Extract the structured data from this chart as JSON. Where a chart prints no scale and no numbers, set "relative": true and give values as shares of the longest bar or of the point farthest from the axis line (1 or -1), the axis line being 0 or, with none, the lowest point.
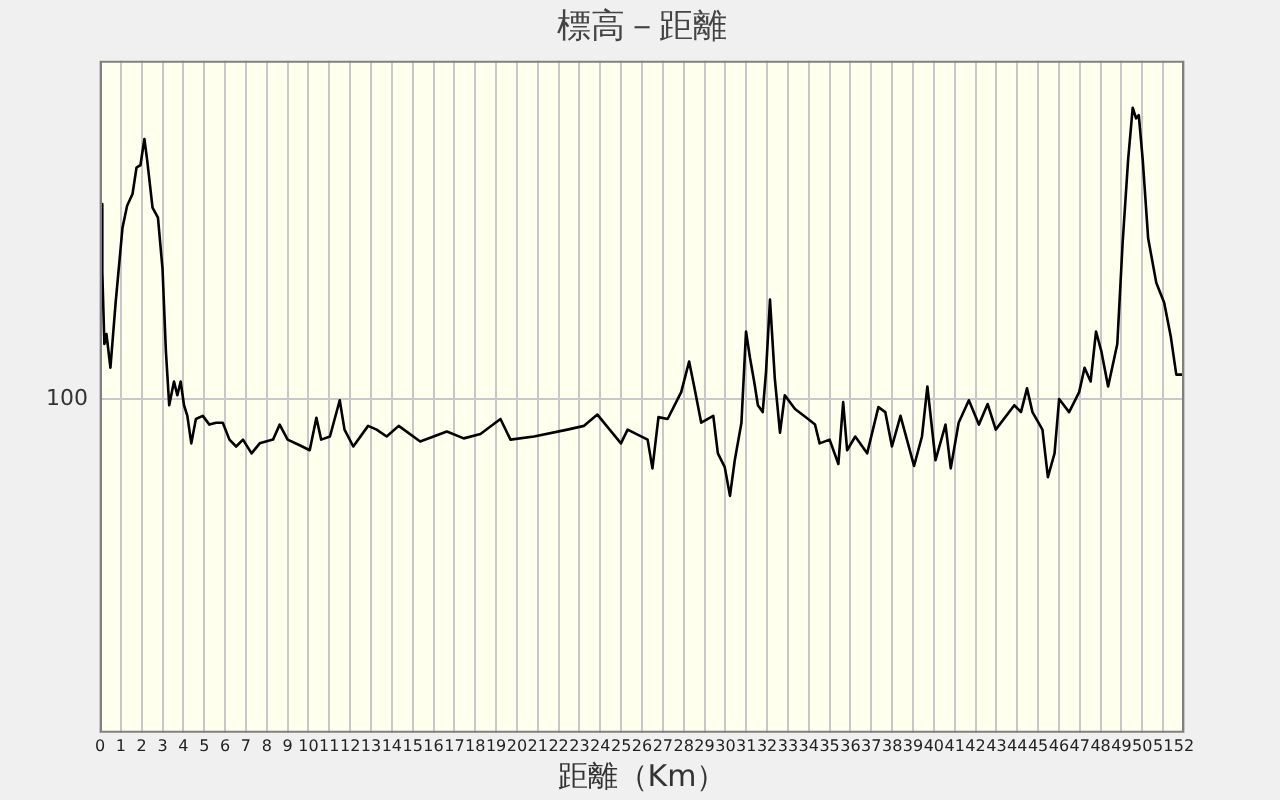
{
  "chart_data": {
    "type": "line",
    "title": "標高－距離",
    "xlabel": "距離（Km）",
    "relative": true,
    "xlim": [
      0,
      52
    ],
    "xticks": [
      0,
      1,
      2,
      3,
      4,
      5,
      6,
      7,
      8,
      9,
      10,
      11,
      12,
      13,
      14,
      15,
      16,
      17,
      18,
      19,
      20,
      21,
      22,
      23,
      24,
      25,
      26,
      27,
      28,
      29,
      30,
      31,
      32,
      33,
      34,
      35,
      36,
      37,
      38,
      39,
      40,
      41,
      42,
      43,
      44,
      45,
      46,
      47,
      48,
      49,
      50,
      51,
      52
    ],
    "grid": "x",
    "legend": false,
    "marker": "none",
    "line_style": "solid",
    "ref_lines": [
      {
        "axis": "y",
        "value": 0.534,
        "color": "#c8c8c8"
      }
    ],
    "annotations": [
      "100"
    ],
    "series": [
      {
        "color": "#000000",
        "x": [
          0.11,
          0.11,
          0.21,
          0.31,
          0.5,
          0.75,
          1.08,
          1.3,
          1.56,
          1.75,
          1.94,
          2.13,
          2.26,
          2.52,
          2.78,
          3.0,
          3.16,
          3.32,
          3.55,
          3.71,
          3.87,
          4.03,
          4.19,
          4.38,
          4.6,
          4.93,
          5.25,
          5.57,
          5.89,
          6.21,
          6.53,
          6.86,
          7.27,
          7.66,
          8.3,
          8.62,
          9.0,
          9.58,
          10.06,
          10.38,
          10.61,
          11.03,
          11.5,
          11.73,
          12.15,
          12.86,
          13.27,
          13.75,
          14.33,
          15.36,
          16.0,
          16.64,
          17.45,
          18.25,
          19.21,
          19.69,
          20.82,
          22.42,
          23.22,
          23.86,
          24.99,
          25.31,
          26.27,
          26.5,
          26.79,
          27.23,
          27.88,
          28.26,
          28.52,
          28.84,
          29.42,
          29.64,
          29.97,
          30.22,
          30.45,
          30.77,
          30.99,
          31.18,
          31.41,
          31.56,
          31.79,
          31.95,
          32.14,
          32.37,
          32.62,
          32.85,
          33.34,
          33.97,
          34.3,
          34.52,
          35.0,
          35.42,
          35.65,
          35.84,
          36.23,
          36.8,
          37.34,
          37.67,
          37.99,
          38.4,
          39.05,
          39.43,
          39.69,
          40.08,
          40.56,
          40.81,
          41.19,
          41.68,
          42.16,
          42.58,
          42.97,
          43.86,
          44.18,
          44.47,
          44.73,
          45.21,
          45.47,
          45.79,
          46.01,
          46.49,
          46.97,
          47.23,
          47.52,
          47.78,
          48.03,
          48.36,
          48.8,
          49.06,
          49.32,
          49.54,
          49.7,
          49.83,
          50.02,
          50.28,
          50.67,
          51.05,
          51.37,
          51.63,
          51.95
        ],
        "values": [
          0.846,
          0.737,
          0.622,
          0.638,
          0.584,
          0.688,
          0.808,
          0.843,
          0.862,
          0.904,
          0.908,
          0.95,
          0.917,
          0.84,
          0.824,
          0.742,
          0.611,
          0.524,
          0.562,
          0.54,
          0.562,
          0.524,
          0.507,
          0.463,
          0.502,
          0.507,
          0.493,
          0.496,
          0.496,
          0.469,
          0.458,
          0.469,
          0.447,
          0.463,
          0.469,
          0.493,
          0.469,
          0.46,
          0.452,
          0.504,
          0.469,
          0.474,
          0.532,
          0.485,
          0.458,
          0.491,
          0.485,
          0.474,
          0.491,
          0.466,
          0.474,
          0.482,
          0.471,
          0.478,
          0.502,
          0.469,
          0.474,
          0.485,
          0.491,
          0.509,
          0.463,
          0.485,
          0.469,
          0.423,
          0.505,
          0.502,
          0.545,
          0.594,
          0.551,
          0.496,
          0.507,
          0.447,
          0.425,
          0.379,
          0.436,
          0.496,
          0.642,
          0.6,
          0.556,
          0.524,
          0.513,
          0.578,
          0.693,
          0.567,
          0.48,
          0.54,
          0.518,
          0.502,
          0.493,
          0.463,
          0.469,
          0.43,
          0.529,
          0.452,
          0.474,
          0.447,
          0.521,
          0.513,
          0.458,
          0.507,
          0.427,
          0.474,
          0.554,
          0.436,
          0.493,
          0.423,
          0.496,
          0.532,
          0.493,
          0.526,
          0.485,
          0.524,
          0.513,
          0.551,
          0.513,
          0.485,
          0.409,
          0.447,
          0.534,
          0.513,
          0.545,
          0.584,
          0.562,
          0.642,
          0.611,
          0.554,
          0.622,
          0.786,
          0.917,
          1,
          0.983,
          0.988,
          0.917,
          0.791,
          0.72,
          0.688,
          0.633,
          0.573,
          0.573
        ]
      }
    ]
  }
}
